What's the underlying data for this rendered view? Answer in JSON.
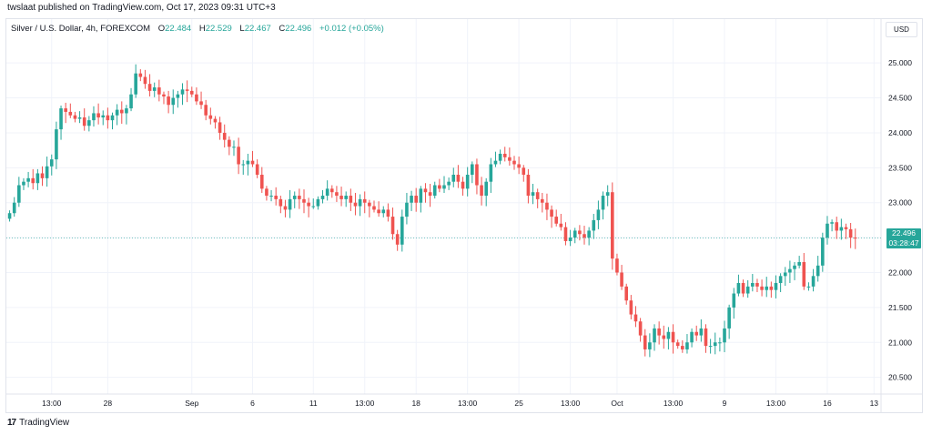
{
  "header": {
    "published": "twslaat published on TradingView.com, Oct 17, 2023 09:31 UTC+3"
  },
  "legend": {
    "symbol": "Silver / U.S. Dollar, 4h, FOREXCOM",
    "o_label": "O",
    "o_value": "22.484",
    "h_label": "H",
    "h_value": "22.529",
    "l_label": "L",
    "l_value": "22.467",
    "c_label": "C",
    "c_value": "22.496",
    "change": "+0.012 (+0.05%)"
  },
  "currency_button": "USD",
  "last_price": {
    "price": "22.496",
    "countdown": "03:28:47"
  },
  "footer": {
    "brand": "TradingView",
    "logo_text": "17"
  },
  "colors": {
    "up": "#26a69a",
    "down": "#ef5350",
    "grid": "#f0f3fa",
    "axis_text": "#131722"
  },
  "chart_data": {
    "type": "candlestick",
    "symbol": "Silver / U.S. Dollar",
    "interval": "4h",
    "ylim": [
      20.3,
      25.38
    ],
    "y_ticks": [
      "20.500",
      "21.000",
      "21.500",
      "22.000",
      "22.500",
      "23.000",
      "23.500",
      "24.000",
      "24.500",
      "25.000"
    ],
    "x_ticks": [
      {
        "label": "13:00",
        "i": 9
      },
      {
        "label": "28",
        "i": 21
      },
      {
        "label": "Sep",
        "i": 39
      },
      {
        "label": "6",
        "i": 52
      },
      {
        "label": "11",
        "i": 65
      },
      {
        "label": "13:00",
        "i": 76
      },
      {
        "label": "18",
        "i": 87
      },
      {
        "label": "13:00",
        "i": 98
      },
      {
        "label": "25",
        "i": 109
      },
      {
        "label": "13:00",
        "i": 120
      },
      {
        "label": "Oct",
        "i": 130
      },
      {
        "label": "13:00",
        "i": 142
      },
      {
        "label": "9",
        "i": 153
      },
      {
        "label": "13:00",
        "i": 164
      },
      {
        "label": "16",
        "i": 175
      },
      {
        "label": "13",
        "i": 185
      }
    ],
    "x_slots": 187,
    "closes": [
      22.85,
      23.0,
      23.25,
      23.3,
      23.35,
      23.28,
      23.42,
      23.35,
      23.52,
      23.62,
      24.05,
      24.35,
      24.3,
      24.25,
      24.2,
      24.22,
      24.1,
      24.18,
      24.28,
      24.22,
      24.25,
      24.18,
      24.25,
      24.33,
      24.28,
      24.35,
      24.55,
      24.85,
      24.8,
      24.7,
      24.6,
      24.65,
      24.55,
      24.52,
      24.4,
      24.5,
      24.55,
      24.62,
      24.6,
      24.55,
      24.45,
      24.4,
      24.25,
      24.2,
      24.15,
      24.0,
      23.9,
      23.8,
      23.8,
      23.55,
      23.55,
      23.6,
      23.55,
      23.4,
      23.2,
      23.1,
      23.1,
      23.05,
      22.95,
      22.9,
      23.05,
      23.1,
      23.05,
      23.0,
      22.95,
      22.95,
      23.05,
      23.1,
      23.2,
      23.15,
      23.1,
      23.05,
      23.1,
      23.0,
      22.95,
      23.05,
      23.0,
      22.95,
      22.9,
      22.85,
      22.9,
      22.8,
      22.55,
      22.4,
      22.8,
      23.0,
      23.1,
      23.0,
      23.2,
      23.15,
      23.1,
      23.25,
      23.2,
      23.25,
      23.3,
      23.4,
      23.3,
      23.2,
      23.4,
      23.55,
      23.25,
      23.1,
      23.3,
      23.55,
      23.6,
      23.7,
      23.65,
      23.6,
      23.55,
      23.5,
      23.4,
      23.1,
      23.15,
      23.05,
      23.0,
      22.9,
      22.8,
      22.7,
      22.65,
      22.45,
      22.5,
      22.6,
      22.55,
      22.5,
      22.6,
      22.75,
      22.9,
      23.1,
      23.15,
      22.2,
      22.0,
      21.8,
      21.6,
      21.4,
      21.3,
      21.1,
      20.9,
      21.0,
      21.2,
      21.1,
      21.05,
      21.15,
      21.0,
      20.95,
      20.9,
      21.0,
      21.15,
      21.1,
      21.2,
      20.95,
      20.95,
      21.0,
      21.0,
      21.2,
      21.5,
      21.7,
      21.85,
      21.7,
      21.8,
      21.85,
      21.8,
      21.75,
      21.8,
      21.75,
      21.85,
      21.95,
      22.0,
      22.05,
      22.1,
      22.15,
      21.8,
      21.8,
      21.95,
      22.1,
      22.5,
      22.7,
      22.72,
      22.6,
      22.65,
      22.62,
      22.5,
      22.496
    ]
  }
}
